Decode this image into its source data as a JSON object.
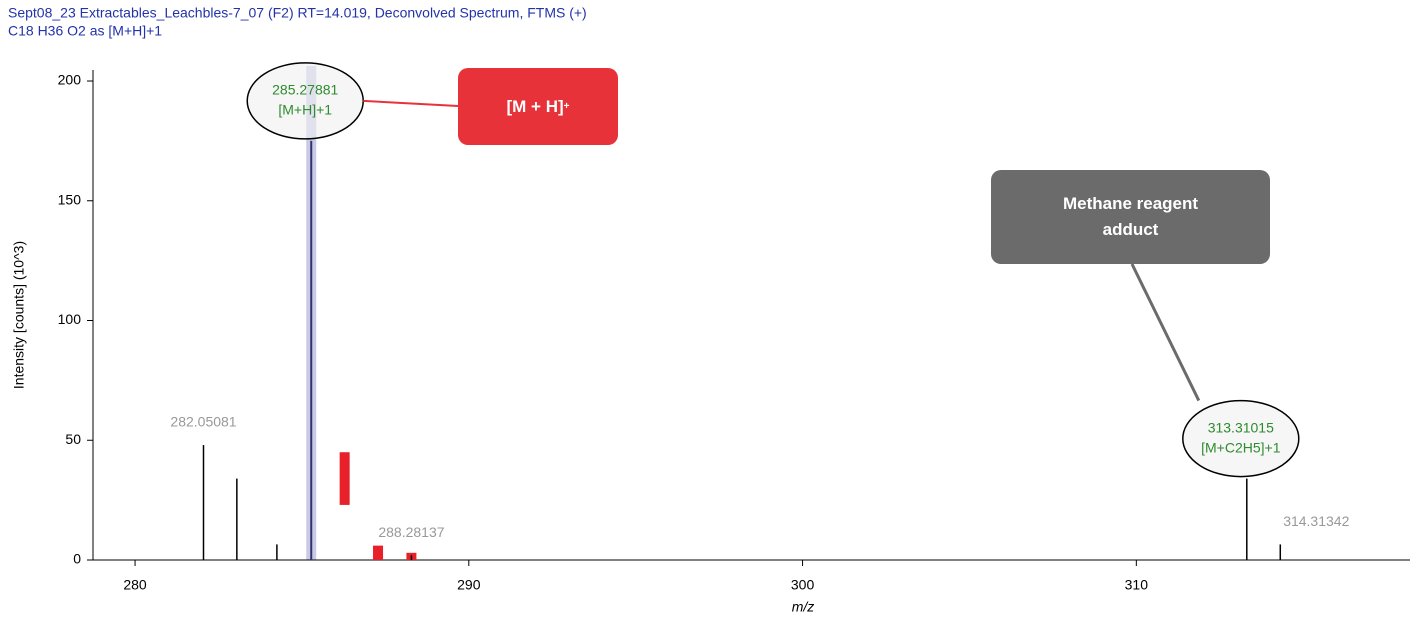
{
  "chart_data": {
    "type": "stem",
    "title": "Sept08_23 Extractables_Leachbles-7_07 (F2) RT=14.019, Deconvolved Spectrum, FTMS (+)",
    "subtitle": "C18 H36 O2 as [M+H]+1",
    "x_label": "m/z",
    "y_label": "Intensity [counts] (10^3)",
    "xlim": [
      278.74,
      318.2
    ],
    "ylim": [
      0,
      204.6
    ],
    "xticks": [
      280,
      290,
      300,
      310
    ],
    "yticks": [
      0,
      50,
      100,
      150,
      200
    ],
    "peaks": {
      "color": "#000000",
      "x": [
        282.05081,
        283.05,
        284.25,
        285.27881,
        288.28137,
        313.31015,
        314.31342
      ],
      "values": [
        48,
        34,
        6.5,
        175,
        2,
        34,
        6.5
      ],
      "labels": [
        "282.05081",
        null,
        null,
        "285.27881",
        "288.28137",
        "313.31015",
        "314.31342"
      ],
      "ion_labels": [
        null,
        null,
        null,
        "[M+H]+1",
        null,
        "[M+C2H5]+1",
        null
      ]
    },
    "theoretical": {
      "color": "#e8202a",
      "x": [
        286.28,
        287.28,
        288.28
      ],
      "low": [
        23,
        0,
        0
      ],
      "high": [
        45,
        6,
        3
      ]
    },
    "highlight": {
      "color": "#c9cbe6",
      "x": 285.27881
    },
    "callouts": [
      {
        "text": "[M + H]",
        "sup": "+",
        "color": "#e8323a"
      },
      {
        "text": "Methane reagent adduct",
        "color": "#6b6b6b"
      }
    ]
  }
}
